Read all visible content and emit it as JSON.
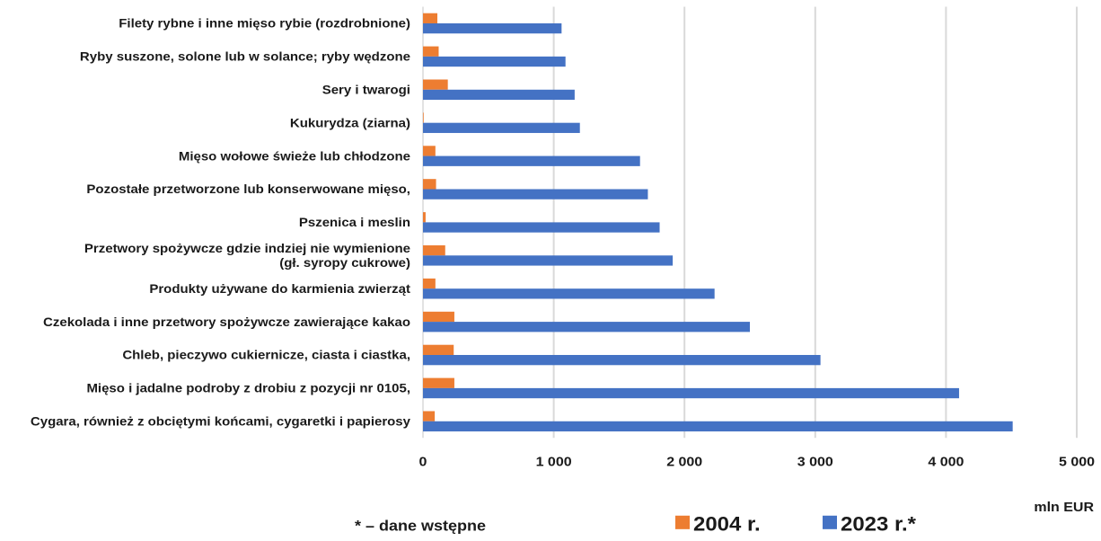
{
  "chart_data": {
    "type": "bar",
    "orientation": "horizontal",
    "categories": [
      [
        "Filety rybne i inne mięso rybie (rozdrobnione)"
      ],
      [
        "Ryby suszone, solone lub w solance; ryby wędzone"
      ],
      [
        "Sery i twarogi"
      ],
      [
        "Kukurydza (ziarna)"
      ],
      [
        "Mięso wołowe świeże lub chłodzone"
      ],
      [
        "Pozostałe przetworzone lub konserwowane mięso,"
      ],
      [
        "Pszenica i meslin"
      ],
      [
        "Przetwory spożywcze gdzie indziej nie wymienione",
        "(gł. syropy cukrowe)"
      ],
      [
        "Produkty używane do karmienia zwierząt"
      ],
      [
        "Czekolada i inne przetwory spożywcze zawierające kakao"
      ],
      [
        "Chleb, pieczywo cukiernicze, ciasta i ciastka,"
      ],
      [
        "Mięso i jadalne podroby z drobiu z pozycji nr 0105,"
      ],
      [
        "Cygara, również z obciętymi końcami, cygaretki i papierosy"
      ]
    ],
    "series": [
      {
        "name": "2004 r.",
        "color": "#ED7D31",
        "values": [
          110,
          120,
          190,
          5,
          95,
          100,
          20,
          170,
          95,
          240,
          235,
          240,
          90
        ]
      },
      {
        "name": "2023 r.*",
        "color": "#4472C4",
        "values": [
          1060,
          1090,
          1160,
          1200,
          1660,
          1720,
          1810,
          1910,
          2230,
          2500,
          3040,
          4100,
          4510
        ]
      }
    ],
    "xlim": [
      0,
      5000
    ],
    "xticks": [
      "0",
      "1 000",
      "2 000",
      "3 000",
      "4 000",
      "5 000"
    ],
    "xtick_values": [
      0,
      1000,
      2000,
      3000,
      4000,
      5000
    ],
    "xlabel": "mln EUR",
    "grid": true,
    "gridline_color": "#D9D9D9",
    "legend_position": "bottom",
    "note": "* – dane wstępne"
  }
}
